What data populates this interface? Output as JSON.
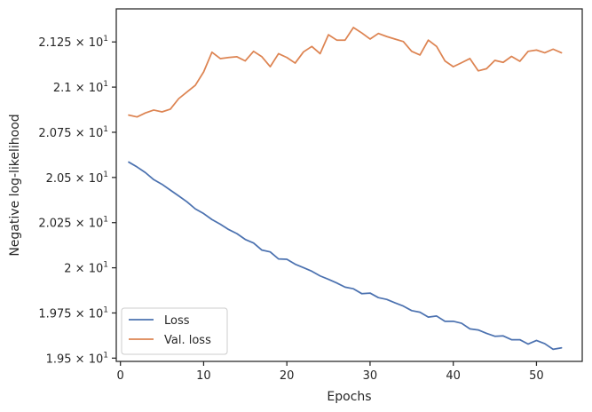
{
  "chart_data": {
    "type": "line",
    "xlabel": "Epochs",
    "ylabel": "Negative log-likelihood",
    "xlim": [
      -0.5,
      55.5
    ],
    "ylim": [
      19.482,
      21.433
    ],
    "xticks": [
      0,
      10,
      20,
      30,
      40,
      50
    ],
    "xtick_labels": [
      "0",
      "10",
      "20",
      "30",
      "40",
      "50"
    ],
    "yticks": [
      {
        "value": 19.5,
        "mantissa": "1.95"
      },
      {
        "value": 19.75,
        "mantissa": "1.975"
      },
      {
        "value": 20.0,
        "mantissa": "2"
      },
      {
        "value": 20.25,
        "mantissa": "2.025"
      },
      {
        "value": 20.5,
        "mantissa": "2.05"
      },
      {
        "value": 20.75,
        "mantissa": "2.075"
      },
      {
        "value": 21.0,
        "mantissa": "2.1"
      },
      {
        "value": 21.25,
        "mantissa": "2.125"
      }
    ],
    "ytick_base": "10",
    "ytick_exponent": "1",
    "legend": "lower-left",
    "grid": false,
    "x": [
      1,
      2,
      3,
      4,
      5,
      6,
      7,
      8,
      9,
      10,
      11,
      12,
      13,
      14,
      15,
      16,
      17,
      18,
      19,
      20,
      21,
      22,
      23,
      24,
      25,
      26,
      27,
      28,
      29,
      30,
      31,
      32,
      33,
      34,
      35,
      36,
      37,
      38,
      39,
      40,
      41,
      42,
      43,
      44,
      45,
      46,
      47,
      48,
      49,
      50,
      51,
      52,
      53
    ],
    "series": [
      {
        "name": "Loss",
        "color": "#4c72b0",
        "values": [
          20.585,
          20.558,
          20.527,
          20.488,
          20.462,
          20.43,
          20.398,
          20.365,
          20.326,
          20.3,
          20.267,
          20.241,
          20.212,
          20.189,
          20.157,
          20.137,
          20.098,
          20.088,
          20.049,
          20.047,
          20.02,
          20.001,
          19.981,
          19.955,
          19.936,
          19.916,
          19.893,
          19.884,
          19.857,
          19.86,
          19.835,
          19.825,
          19.806,
          19.788,
          19.763,
          19.754,
          19.727,
          19.733,
          19.704,
          19.704,
          19.693,
          19.662,
          19.656,
          19.637,
          19.621,
          19.623,
          19.602,
          19.602,
          19.578,
          19.598,
          19.58,
          19.549,
          19.557
        ]
      },
      {
        "name": "Val. loss",
        "color": "#dd8452",
        "values": [
          20.845,
          20.835,
          20.857,
          20.873,
          20.863,
          20.878,
          20.936,
          20.973,
          21.01,
          21.084,
          21.193,
          21.158,
          21.164,
          21.168,
          21.145,
          21.198,
          21.168,
          21.113,
          21.185,
          21.164,
          21.133,
          21.195,
          21.225,
          21.185,
          21.29,
          21.26,
          21.26,
          21.33,
          21.3,
          21.266,
          21.297,
          21.28,
          21.266,
          21.252,
          21.198,
          21.178,
          21.26,
          21.225,
          21.145,
          21.113,
          21.135,
          21.158,
          21.09,
          21.102,
          21.148,
          21.137,
          21.17,
          21.143,
          21.198,
          21.205,
          21.19,
          21.21,
          21.19
        ]
      }
    ]
  }
}
